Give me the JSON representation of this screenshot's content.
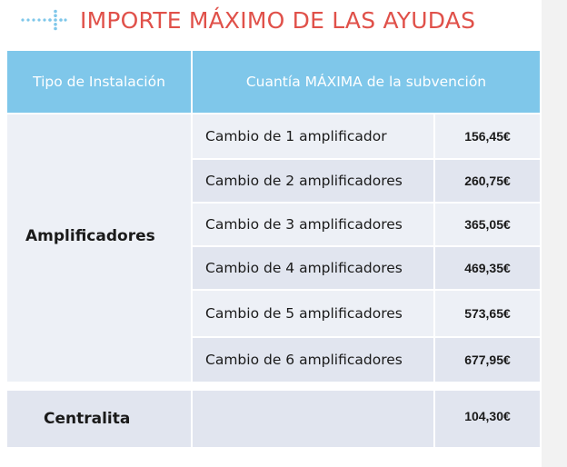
{
  "header": {
    "title": "IMPORTE MÁXIMO DE LAS AYUDAS",
    "icon": "dotted-plus-icon",
    "accent": "#e0514a"
  },
  "table": {
    "header_color": "#7fc7ea",
    "columns": [
      "Tipo de Instalación",
      "Cuantía MÁXIMA de la subvención"
    ],
    "amplificadores": {
      "label": "Amplificadores",
      "rows": [
        {
          "label": "Cambio de 1 amplificador",
          "value": "156,45€"
        },
        {
          "label": "Cambio de 2 amplificadores",
          "value": "260,75€"
        },
        {
          "label": "Cambio de 3 amplificadores",
          "value": "365,05€"
        },
        {
          "label": "Cambio de 4 amplificadores",
          "value": "469,35€"
        },
        {
          "label": "Cambio de 5 amplificadores",
          "value": "573,65€"
        },
        {
          "label": "Cambio de 6 amplificadores",
          "value": "677,95€"
        }
      ]
    },
    "centralita": {
      "label": "Centralita",
      "value": "104,30€"
    }
  }
}
